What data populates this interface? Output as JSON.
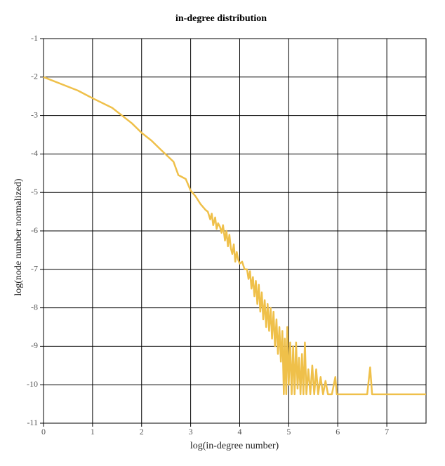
{
  "chart_data": {
    "type": "line",
    "title": "in-degree distribution",
    "xlabel": "log(in-degree number)",
    "ylabel": "log(node number normalized)",
    "color": "#efc04a",
    "grid": true,
    "xlim": [
      0,
      7.8
    ],
    "ylim": [
      -11,
      -1
    ],
    "xticks": [
      0,
      1,
      2,
      3,
      4,
      5,
      6,
      7
    ],
    "yticks": [
      -1,
      -2,
      -3,
      -4,
      -5,
      -6,
      -7,
      -8,
      -9,
      -10,
      -11
    ],
    "x": [
      0,
      0.7,
      1.0,
      1.4,
      1.8,
      2.0,
      2.2,
      2.4,
      2.65,
      2.75,
      2.9,
      3.0,
      3.1,
      3.2,
      3.3,
      3.35,
      3.4,
      3.43,
      3.46,
      3.5,
      3.53,
      3.56,
      3.6,
      3.63,
      3.66,
      3.7,
      3.73,
      3.76,
      3.79,
      3.82,
      3.85,
      3.88,
      3.91,
      3.94,
      3.97,
      4.0,
      4.05,
      4.1,
      4.15,
      4.18,
      4.21,
      4.24,
      4.27,
      4.3,
      4.33,
      4.36,
      4.39,
      4.42,
      4.45,
      4.48,
      4.51,
      4.54,
      4.57,
      4.6,
      4.63,
      4.66,
      4.69,
      4.72,
      4.75,
      4.78,
      4.81,
      4.84,
      4.87,
      4.9,
      4.92,
      4.95,
      4.97,
      5.0,
      5.03,
      5.06,
      5.09,
      5.12,
      5.15,
      5.18,
      5.21,
      5.24,
      5.27,
      5.3,
      5.33,
      5.36,
      5.4,
      5.44,
      5.48,
      5.52,
      5.56,
      5.6,
      5.65,
      5.7,
      5.75,
      5.8,
      5.88,
      5.95,
      5.98,
      6.6,
      6.66,
      6.7,
      7.8
    ],
    "values": [
      -2,
      -2.35,
      -2.55,
      -2.8,
      -3.2,
      -3.45,
      -3.65,
      -3.9,
      -4.2,
      -4.55,
      -4.65,
      -4.95,
      -5.1,
      -5.3,
      -5.45,
      -5.5,
      -5.7,
      -5.55,
      -5.85,
      -5.65,
      -5.95,
      -5.8,
      -5.9,
      -6.05,
      -5.85,
      -6.25,
      -6.0,
      -6.4,
      -6.1,
      -6.45,
      -6.6,
      -6.35,
      -6.8,
      -6.55,
      -6.75,
      -6.85,
      -6.8,
      -7.0,
      -7.0,
      -7.25,
      -7.05,
      -7.5,
      -7.2,
      -7.7,
      -7.3,
      -7.9,
      -7.4,
      -8.1,
      -7.6,
      -8.3,
      -7.8,
      -8.5,
      -7.9,
      -8.6,
      -8.0,
      -8.8,
      -8.1,
      -9.0,
      -8.3,
      -9.2,
      -8.5,
      -9.4,
      -8.6,
      -10.25,
      -8.8,
      -10.25,
      -8.5,
      -10.0,
      -8.9,
      -10.25,
      -9.0,
      -10.25,
      -8.9,
      -10.1,
      -9.3,
      -10.25,
      -9.2,
      -10.25,
      -8.9,
      -10.25,
      -9.6,
      -10.25,
      -9.5,
      -10.25,
      -9.6,
      -10.25,
      -9.8,
      -10.25,
      -9.9,
      -10.25,
      -10.25,
      -9.8,
      -10.25,
      -10.25,
      -9.55,
      -10.25,
      -10.25
    ]
  }
}
